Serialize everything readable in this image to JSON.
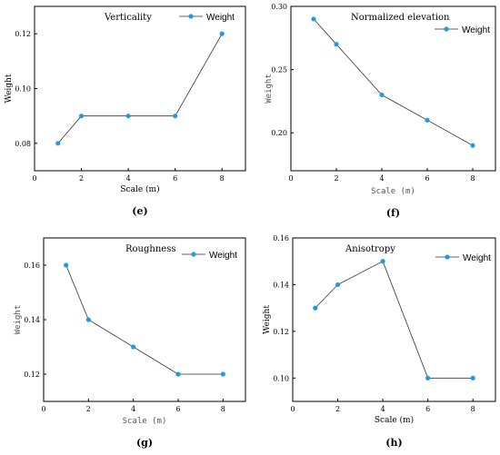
{
  "colors": {
    "marker": "#1e9be6",
    "line": "#333333"
  },
  "chart_data": [
    {
      "type": "line",
      "panel": "(e)",
      "title": "Verticality",
      "xlabel": "Scale (m)",
      "ylabel": "Weight",
      "xlim": [
        0,
        9
      ],
      "ylim": [
        0.07,
        0.13
      ],
      "xticks": [
        0,
        2,
        4,
        6,
        8
      ],
      "yticks": [
        0.08,
        0.1,
        0.12
      ],
      "series": [
        {
          "name": "Weight",
          "x": [
            1,
            2,
            4,
            6,
            8
          ],
          "values": [
            0.08,
            0.09,
            0.09,
            0.09,
            0.12
          ]
        }
      ]
    },
    {
      "type": "line",
      "panel": "(f)",
      "title": "Normalized elevation",
      "xlabel": "Scale (m)",
      "ylabel": "Weight",
      "xlim": [
        0,
        9
      ],
      "ylim": [
        0.17,
        0.3
      ],
      "xticks": [
        0,
        2,
        4,
        6,
        8
      ],
      "yticks": [
        0.2,
        0.25,
        0.3
      ],
      "series": [
        {
          "name": "Weight",
          "x": [
            1,
            2,
            4,
            6,
            8
          ],
          "values": [
            0.29,
            0.27,
            0.23,
            0.21,
            0.19
          ]
        }
      ]
    },
    {
      "type": "line",
      "panel": "(g)",
      "title": "Roughness",
      "xlabel": "Scale (m)",
      "ylabel": "Weight",
      "xlim": [
        0,
        9
      ],
      "ylim": [
        0.11,
        0.17
      ],
      "xticks": [
        0,
        2,
        4,
        6,
        8
      ],
      "yticks": [
        0.12,
        0.14,
        0.16
      ],
      "series": [
        {
          "name": "Weight",
          "x": [
            1,
            2,
            4,
            6,
            8
          ],
          "values": [
            0.16,
            0.14,
            0.13,
            0.12,
            0.12
          ]
        }
      ]
    },
    {
      "type": "line",
      "panel": "(h)",
      "title": "Anisotropy",
      "xlabel": "Scale (m)",
      "ylabel": "Weight",
      "xlim": [
        0,
        9
      ],
      "ylim": [
        0.09,
        0.16
      ],
      "xticks": [
        0,
        2,
        4,
        6,
        8
      ],
      "yticks": [
        0.1,
        0.12,
        0.14,
        0.16
      ],
      "series": [
        {
          "name": "Weight",
          "x": [
            1,
            2,
            4,
            6,
            8
          ],
          "values": [
            0.13,
            0.14,
            0.15,
            0.1,
            0.1
          ]
        }
      ]
    }
  ]
}
